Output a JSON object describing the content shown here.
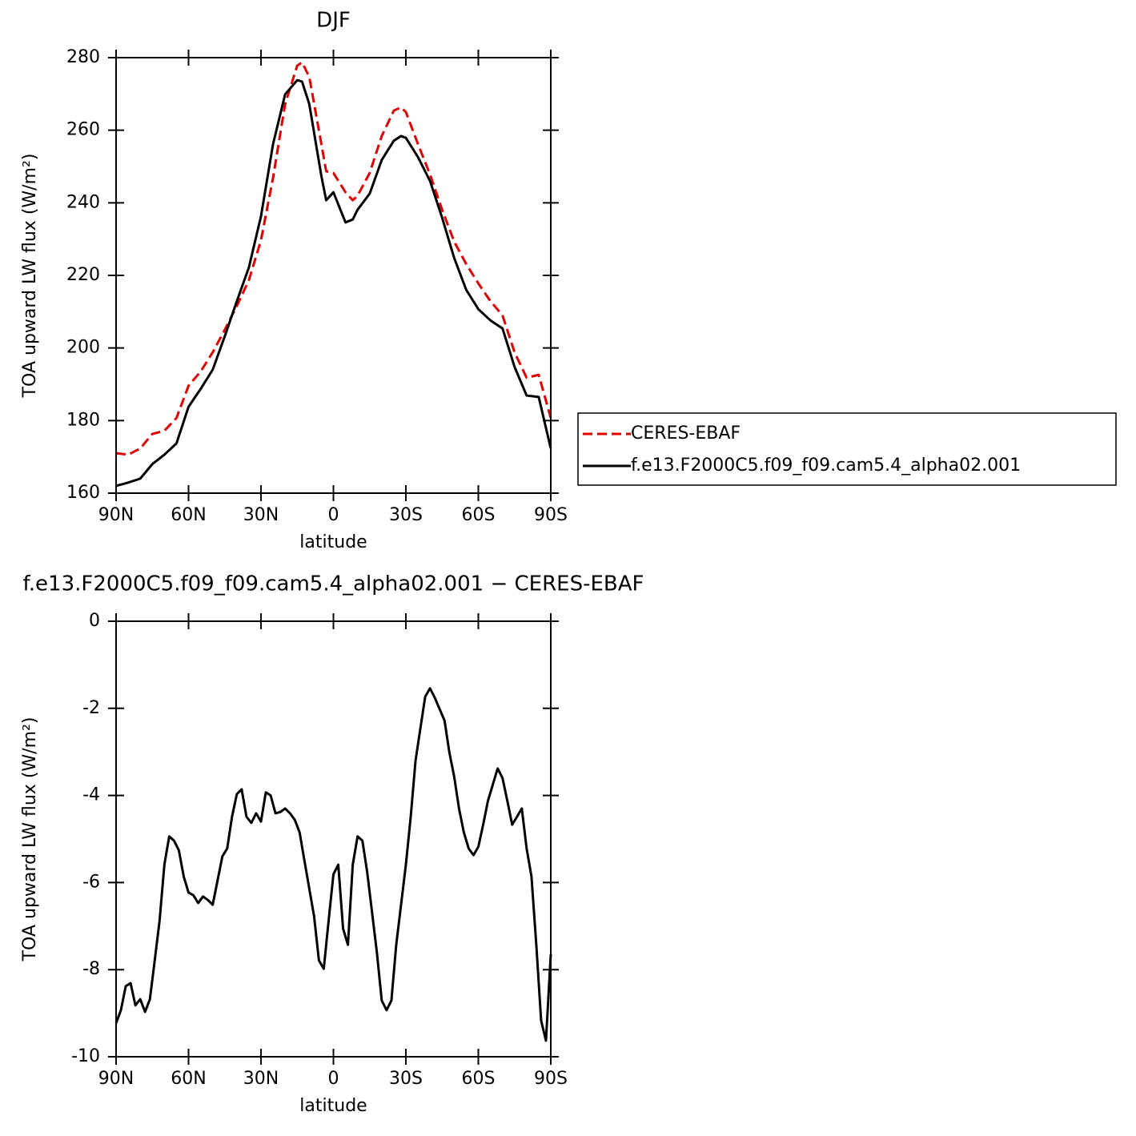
{
  "chart_data": [
    {
      "type": "line",
      "title": "DJF",
      "xlabel": "latitude",
      "ylabel": "TOA upward LW flux (W/m²)",
      "x": [
        90,
        85,
        80,
        75,
        70,
        65,
        60,
        55,
        50,
        45,
        40,
        35,
        30,
        25,
        20,
        15,
        13,
        10,
        5,
        3,
        0,
        -5,
        -8,
        -10,
        -15,
        -20,
        -25,
        -28,
        -30,
        -35,
        -40,
        -45,
        -50,
        -55,
        -60,
        -65,
        -70,
        -75,
        -80,
        -85,
        -90
      ],
      "series": [
        {
          "name": "CERES-EBAF",
          "color": "#e00000",
          "line_style": "dashed",
          "values": [
            171.0,
            170.6,
            172.3,
            176.3,
            177.2,
            180.7,
            189.6,
            193.5,
            198.8,
            205.0,
            211.6,
            218.7,
            229.7,
            246.9,
            267.2,
            277.8,
            278.7,
            274.7,
            256.2,
            248.7,
            248.2,
            242.9,
            240.7,
            242.0,
            248.2,
            258.4,
            265.4,
            266.3,
            265.0,
            256.2,
            247.8,
            238.1,
            229.3,
            223.1,
            217.8,
            212.9,
            209.0,
            198.8,
            191.8,
            192.6,
            180.7
          ]
        },
        {
          "name": "f.e13.F2000C5.f09_f09.cam5.4_alpha02.001",
          "color": "#000000",
          "line_style": "solid",
          "values": [
            162.0,
            162.9,
            164.0,
            168.0,
            170.6,
            173.7,
            183.8,
            188.7,
            194.0,
            203.2,
            212.9,
            222.2,
            236.3,
            256.2,
            269.9,
            273.8,
            273.4,
            267.2,
            247.4,
            240.7,
            242.9,
            234.6,
            235.4,
            238.1,
            242.5,
            251.8,
            257.1,
            258.4,
            257.9,
            252.6,
            246.0,
            235.9,
            224.8,
            216.0,
            210.7,
            207.6,
            205.4,
            194.8,
            186.9,
            186.5,
            172.3
          ]
        }
      ],
      "xlim": [
        90,
        -90
      ],
      "xticks": [
        {
          "value": 90,
          "label": "90N"
        },
        {
          "value": 60,
          "label": "60N"
        },
        {
          "value": 30,
          "label": "30N"
        },
        0,
        {
          "value": -30,
          "label": "30S"
        },
        {
          "value": -60,
          "label": "60S"
        },
        {
          "value": -90,
          "label": "90S"
        }
      ],
      "ylim": [
        160,
        280
      ],
      "yticks": [
        160,
        180,
        200,
        220,
        240,
        260,
        280
      ],
      "legend": "right"
    },
    {
      "type": "line",
      "title": "f.e13.F2000C5.f09_f09.cam5.4_alpha02.001 − CERES-EBAF",
      "xlabel": "latitude",
      "ylabel": "TOA upward LW flux (W/m²)",
      "x": [
        90,
        88,
        86,
        84,
        82,
        80,
        78,
        76,
        74,
        72,
        70,
        68,
        66,
        64,
        62,
        60,
        58,
        56,
        54,
        52,
        50,
        48,
        46,
        44,
        42,
        40,
        38,
        36,
        34,
        32,
        30,
        28,
        26,
        24,
        22,
        20,
        18,
        16,
        14,
        12,
        10,
        8,
        6,
        4,
        2,
        0,
        -2,
        -4,
        -6,
        -8,
        -10,
        -12,
        -14,
        -16,
        -18,
        -20,
        -22,
        -24,
        -26,
        -28,
        -30,
        -32,
        -34,
        -36,
        -38,
        -40,
        -42,
        -44,
        -46,
        -48,
        -50,
        -52,
        -54,
        -56,
        -58,
        -60,
        -62,
        -64,
        -66,
        -68,
        -70,
        -72,
        -74,
        -76,
        -78,
        -80,
        -82,
        -84,
        -86,
        -88,
        -90
      ],
      "series": [
        {
          "color": "#000000",
          "line_style": "solid",
          "values": [
            -9.23,
            -8.93,
            -8.38,
            -8.31,
            -8.82,
            -8.68,
            -8.97,
            -8.68,
            -7.79,
            -6.88,
            -5.59,
            -4.94,
            -5.04,
            -5.26,
            -5.86,
            -6.23,
            -6.29,
            -6.47,
            -6.32,
            -6.4,
            -6.51,
            -5.96,
            -5.4,
            -5.22,
            -4.49,
            -3.97,
            -3.86,
            -4.49,
            -4.63,
            -4.41,
            -4.6,
            -3.93,
            -4.0,
            -4.41,
            -4.38,
            -4.3,
            -4.41,
            -4.56,
            -4.85,
            -5.5,
            -6.14,
            -6.78,
            -7.79,
            -7.98,
            -6.88,
            -5.81,
            -5.59,
            -7.06,
            -7.43,
            -5.59,
            -4.94,
            -5.04,
            -5.77,
            -6.69,
            -7.61,
            -8.71,
            -8.93,
            -8.71,
            -7.43,
            -6.51,
            -5.59,
            -4.49,
            -3.2,
            -2.46,
            -1.73,
            -1.54,
            -1.76,
            -2.02,
            -2.28,
            -3.01,
            -3.57,
            -4.3,
            -4.85,
            -5.22,
            -5.37,
            -5.18,
            -4.67,
            -4.12,
            -3.75,
            -3.38,
            -3.6,
            -4.12,
            -4.67,
            -4.49,
            -4.3,
            -5.22,
            -5.86,
            -7.43,
            -9.17,
            -9.63,
            -7.65
          ]
        }
      ],
      "xlim": [
        90,
        -90
      ],
      "xticks": [
        {
          "value": 90,
          "label": "90N"
        },
        {
          "value": 60,
          "label": "60N"
        },
        {
          "value": 30,
          "label": "30N"
        },
        0,
        {
          "value": -30,
          "label": "30S"
        },
        {
          "value": -60,
          "label": "60S"
        },
        {
          "value": -90,
          "label": "90S"
        }
      ],
      "ylim": [
        -10,
        0
      ],
      "yticks": [
        -10,
        -8,
        -6,
        -4,
        -2,
        0
      ]
    }
  ]
}
